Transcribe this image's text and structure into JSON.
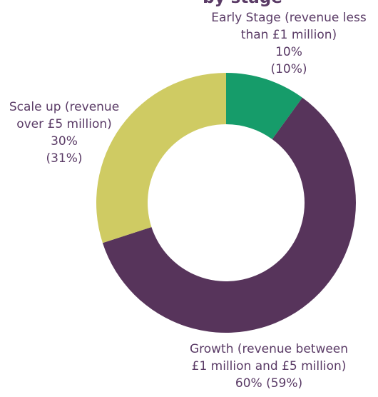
{
  "chart_data": {
    "type": "pie",
    "variant": "donut",
    "title_partial": "by stage",
    "slices": [
      {
        "name": "Early Stage (revenue less than £1 million)",
        "value": 10,
        "display": "10%",
        "previous": "(10%)",
        "color": "#169c6a",
        "label_lines": [
          "Early Stage (revenue less",
          "than £1 million)",
          "10%",
          "(10%)"
        ]
      },
      {
        "name": "Growth (revenue between £1 million and £5 million)",
        "value": 60,
        "display": "60%",
        "previous": "(59%)",
        "color": "#57345b",
        "label_lines": [
          "Growth (revenue between",
          "£1 million and £5 million)",
          "60% (59%)"
        ]
      },
      {
        "name": "Scale up (revenue over £5 million)",
        "value": 30,
        "display": "30%",
        "previous": "(31%)",
        "color": "#cfcb63",
        "label_lines": [
          "Scale up (revenue",
          "over £5 million)",
          "30%",
          "(31%)"
        ]
      }
    ]
  },
  "colors": {
    "label_text": "#5a3b66",
    "background": "#ffffff"
  }
}
